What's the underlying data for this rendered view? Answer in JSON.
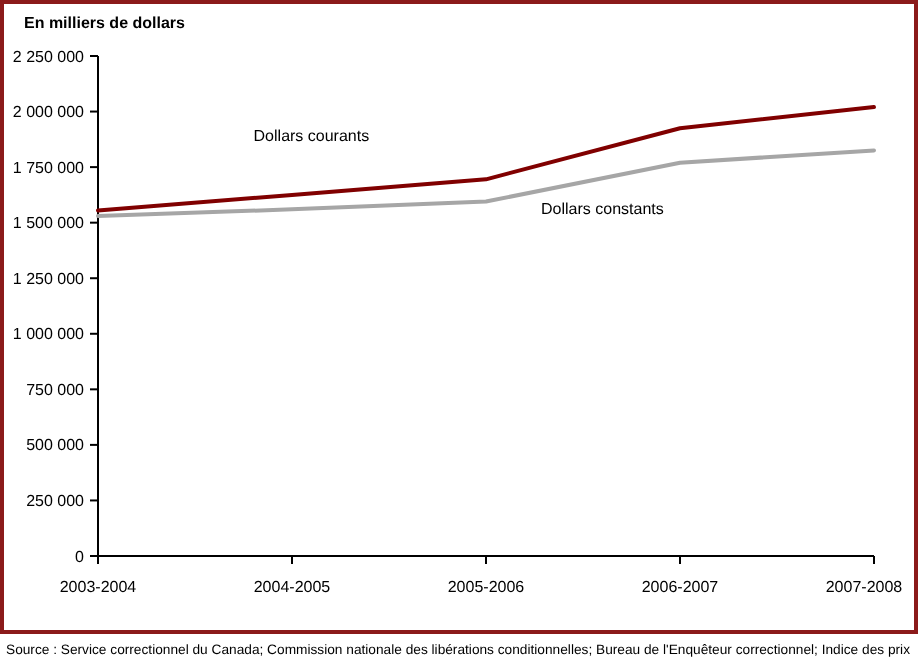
{
  "chart_data": {
    "type": "line",
    "ylabel": "En milliers de dollars",
    "categories": [
      "2003-2004",
      "2004-2005",
      "2005-2006",
      "2006-2007",
      "2007-2008"
    ],
    "series": [
      {
        "name": "Dollars courants",
        "color": "#800000",
        "values": [
          1555000,
          1625000,
          1695000,
          1925000,
          2020000
        ]
      },
      {
        "name": "Dollars constants",
        "color": "#a6a6a6",
        "values": [
          1530000,
          1560000,
          1595000,
          1770000,
          1825000
        ]
      }
    ],
    "ylim": [
      0,
      2250000
    ],
    "yticks": [
      {
        "value": 0,
        "label": "0"
      },
      {
        "value": 250000,
        "label": "250 000"
      },
      {
        "value": 500000,
        "label": "500 000"
      },
      {
        "value": 750000,
        "label": "750 000"
      },
      {
        "value": 1000000,
        "label": "1 000 000"
      },
      {
        "value": 1250000,
        "label": "1 250 000"
      },
      {
        "value": 1500000,
        "label": "1 500 000"
      },
      {
        "value": 1750000,
        "label": "1 750 000"
      },
      {
        "value": 2000000,
        "label": "2 000 000"
      },
      {
        "value": 2250000,
        "label": "2 250 000"
      }
    ],
    "annotations": [
      "Source : Service correctionnel du Canada; Commission nationale des libérations conditionnelles; Bureau de l'Enquêteur correctionnel; Indice des prix"
    ]
  }
}
